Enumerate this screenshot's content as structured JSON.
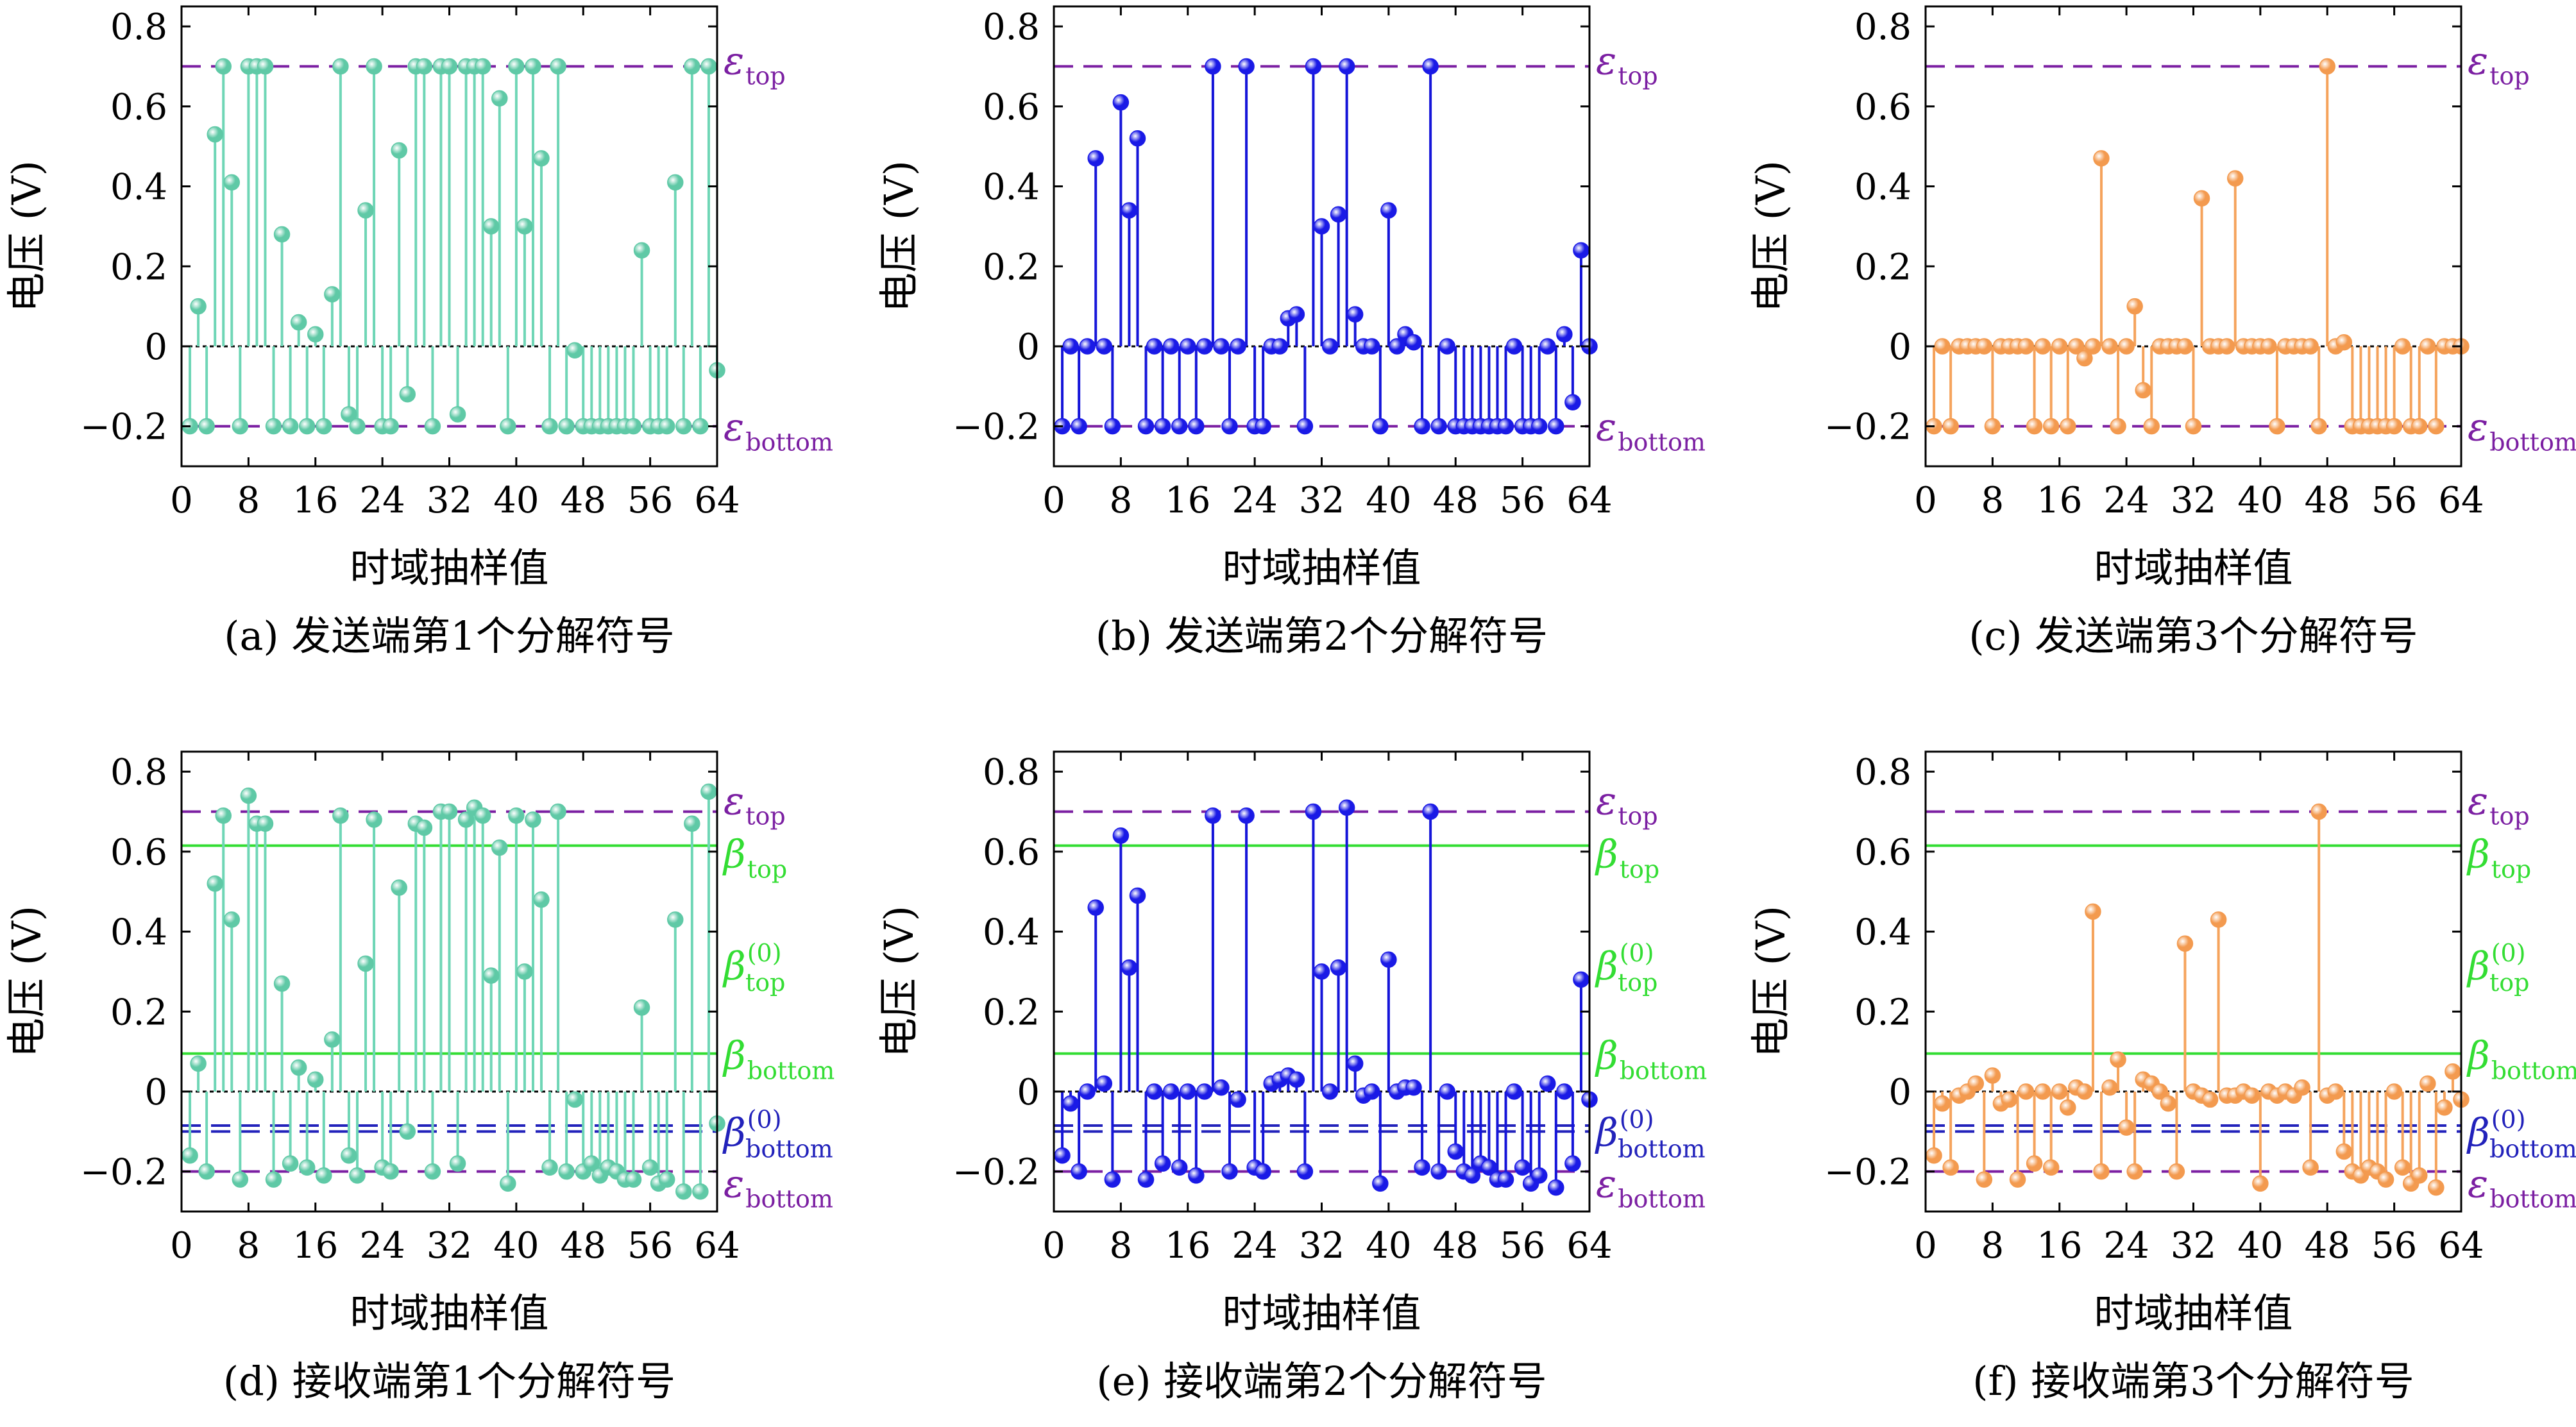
{
  "colors": {
    "teal": "#6fd6b6",
    "teal_marker": "#5fc9a6",
    "blue": "#1515d9",
    "blue_marker": "#1a1ae6",
    "orange": "#f5a35c",
    "orange_marker": "#f39a4f",
    "epsilon_line": "#7b1fa2",
    "beta_line": "#33dd33",
    "beta0_line": "#2222bb",
    "zero_line": "#000000"
  },
  "axes": {
    "ylabel": "电压 (V)",
    "xlabel": "时域抽样值",
    "xticks": [
      0,
      8,
      16,
      24,
      32,
      40,
      48,
      56,
      64
    ],
    "yticks": [
      -0.2,
      0,
      0.2,
      0.4,
      0.6,
      0.8
    ],
    "ytick_labels": [
      "−0.2",
      "0",
      "0.2",
      "0.4",
      "0.6",
      "0.8"
    ],
    "xlim": [
      0,
      64
    ],
    "ylim": [
      -0.3,
      0.85
    ]
  },
  "ref_labels": {
    "epsilon_top": {
      "sym": "ε",
      "sub": "top"
    },
    "epsilon_bottom": {
      "sym": "ε",
      "sub": "bottom"
    },
    "beta_top": {
      "sym": "β",
      "sub": "top"
    },
    "beta_bottom": {
      "sym": "β",
      "sub": "bottom"
    },
    "beta0_top": {
      "sym": "β",
      "sup": "(0)",
      "sub": "top"
    },
    "beta0_bottom": {
      "sym": "β",
      "sup": "(0)",
      "sub": "bottom"
    }
  },
  "chart_data": [
    {
      "type": "stem",
      "caption": "(a) 发送端第1个分解符号",
      "color": "teal",
      "ref_lines": {
        "epsilon_top": 0.7,
        "epsilon_bottom": -0.2
      },
      "x": [
        1,
        2,
        3,
        4,
        5,
        6,
        7,
        8,
        9,
        10,
        11,
        12,
        13,
        14,
        15,
        16,
        17,
        18,
        19,
        20,
        21,
        22,
        23,
        24,
        25,
        26,
        27,
        28,
        29,
        30,
        31,
        32,
        33,
        34,
        35,
        36,
        37,
        38,
        39,
        40,
        41,
        42,
        43,
        44,
        45,
        46,
        47,
        48,
        49,
        50,
        51,
        52,
        53,
        54,
        55,
        56,
        57,
        58,
        59,
        60,
        61,
        62,
        63,
        64
      ],
      "y": [
        -0.2,
        0.1,
        -0.2,
        0.53,
        0.7,
        0.41,
        -0.2,
        0.7,
        0.7,
        0.7,
        -0.2,
        0.28,
        -0.2,
        0.06,
        -0.2,
        0.03,
        -0.2,
        0.13,
        0.7,
        -0.17,
        -0.2,
        0.34,
        0.7,
        -0.2,
        -0.2,
        0.49,
        -0.12,
        0.7,
        0.7,
        -0.2,
        0.7,
        0.7,
        -0.17,
        0.7,
        0.7,
        0.7,
        0.3,
        0.62,
        -0.2,
        0.7,
        0.3,
        0.7,
        0.47,
        -0.2,
        0.7,
        -0.2,
        -0.01,
        -0.2,
        -0.2,
        -0.2,
        -0.2,
        -0.2,
        -0.2,
        -0.2,
        0.24,
        -0.2,
        -0.2,
        -0.2,
        0.41,
        -0.2,
        0.7,
        -0.2,
        0.7,
        -0.06
      ]
    },
    {
      "type": "stem",
      "caption": "(b) 发送端第2个分解符号",
      "color": "blue",
      "ref_lines": {
        "epsilon_top": 0.7,
        "epsilon_bottom": -0.2
      },
      "x": [
        1,
        2,
        3,
        4,
        5,
        6,
        7,
        8,
        9,
        10,
        11,
        12,
        13,
        14,
        15,
        16,
        17,
        18,
        19,
        20,
        21,
        22,
        23,
        24,
        25,
        26,
        27,
        28,
        29,
        30,
        31,
        32,
        33,
        34,
        35,
        36,
        37,
        38,
        39,
        40,
        41,
        42,
        43,
        44,
        45,
        46,
        47,
        48,
        49,
        50,
        51,
        52,
        53,
        54,
        55,
        56,
        57,
        58,
        59,
        60,
        61,
        62,
        63,
        64
      ],
      "y": [
        -0.2,
        0,
        -0.2,
        0,
        0.47,
        0,
        -0.2,
        0.61,
        0.34,
        0.52,
        -0.2,
        0,
        -0.2,
        0,
        -0.2,
        0,
        -0.2,
        0,
        0.7,
        0,
        -0.2,
        0,
        0.7,
        -0.2,
        -0.2,
        0,
        0,
        0.07,
        0.08,
        -0.2,
        0.7,
        0.3,
        0,
        0.33,
        0.7,
        0.08,
        0,
        0,
        -0.2,
        0.34,
        0,
        0.03,
        0.01,
        -0.2,
        0.7,
        -0.2,
        0,
        -0.2,
        -0.2,
        -0.2,
        -0.2,
        -0.2,
        -0.2,
        -0.2,
        0,
        -0.2,
        -0.2,
        -0.2,
        0,
        -0.2,
        0.03,
        -0.14,
        0.24,
        0
      ]
    },
    {
      "type": "stem",
      "caption": "(c) 发送端第3个分解符号",
      "color": "orange",
      "ref_lines": {
        "epsilon_top": 0.7,
        "epsilon_bottom": -0.2
      },
      "x": [
        1,
        2,
        3,
        4,
        5,
        6,
        7,
        8,
        9,
        10,
        11,
        12,
        13,
        14,
        15,
        16,
        17,
        18,
        19,
        20,
        21,
        22,
        23,
        24,
        25,
        26,
        27,
        28,
        29,
        30,
        31,
        32,
        33,
        34,
        35,
        36,
        37,
        38,
        39,
        40,
        41,
        42,
        43,
        44,
        45,
        46,
        47,
        48,
        49,
        50,
        51,
        52,
        53,
        54,
        55,
        56,
        57,
        58,
        59,
        60,
        61,
        62,
        63,
        64
      ],
      "y": [
        -0.2,
        0,
        -0.2,
        0,
        0,
        0,
        0,
        -0.2,
        0,
        0,
        0,
        0,
        -0.2,
        0,
        -0.2,
        0,
        -0.2,
        0,
        -0.03,
        0,
        0.47,
        0,
        -0.2,
        0,
        0.1,
        -0.11,
        -0.2,
        0,
        0,
        0,
        0,
        -0.2,
        0.37,
        0,
        0,
        0,
        0.42,
        0,
        0,
        0,
        0,
        -0.2,
        0,
        0,
        0,
        0,
        -0.2,
        0.7,
        0,
        0.01,
        -0.2,
        -0.2,
        -0.2,
        -0.2,
        -0.2,
        -0.2,
        0,
        -0.2,
        -0.2,
        0,
        -0.2,
        0,
        0,
        0
      ]
    },
    {
      "type": "stem",
      "caption": "(d) 接收端第1个分解符号",
      "color": "teal",
      "ref_lines": {
        "epsilon_top": 0.7,
        "beta_top": 0.615,
        "beta_bottom": 0.095,
        "beta0_bottom": -0.1,
        "epsilon_bottom": -0.2
      },
      "extra_dashed": [
        -0.085
      ],
      "beta0_top_label": 0.3,
      "x": [
        1,
        2,
        3,
        4,
        5,
        6,
        7,
        8,
        9,
        10,
        11,
        12,
        13,
        14,
        15,
        16,
        17,
        18,
        19,
        20,
        21,
        22,
        23,
        24,
        25,
        26,
        27,
        28,
        29,
        30,
        31,
        32,
        33,
        34,
        35,
        36,
        37,
        38,
        39,
        40,
        41,
        42,
        43,
        44,
        45,
        46,
        47,
        48,
        49,
        50,
        51,
        52,
        53,
        54,
        55,
        56,
        57,
        58,
        59,
        60,
        61,
        62,
        63,
        64
      ],
      "y": [
        -0.16,
        0.07,
        -0.2,
        0.52,
        0.69,
        0.43,
        -0.22,
        0.74,
        0.67,
        0.67,
        -0.22,
        0.27,
        -0.18,
        0.06,
        -0.19,
        0.03,
        -0.21,
        0.13,
        0.69,
        -0.16,
        -0.21,
        0.32,
        0.68,
        -0.19,
        -0.2,
        0.51,
        -0.1,
        0.67,
        0.66,
        -0.2,
        0.7,
        0.7,
        -0.18,
        0.68,
        0.71,
        0.69,
        0.29,
        0.61,
        -0.23,
        0.69,
        0.3,
        0.68,
        0.48,
        -0.19,
        0.7,
        -0.2,
        -0.02,
        -0.2,
        -0.18,
        -0.21,
        -0.19,
        -0.2,
        -0.22,
        -0.22,
        0.21,
        -0.19,
        -0.23,
        -0.22,
        0.43,
        -0.25,
        0.67,
        -0.25,
        0.75,
        -0.08
      ]
    },
    {
      "type": "stem",
      "caption": "(e) 接收端第2个分解符号",
      "color": "blue",
      "ref_lines": {
        "epsilon_top": 0.7,
        "beta_top": 0.615,
        "beta_bottom": 0.095,
        "beta0_bottom": -0.1,
        "epsilon_bottom": -0.2
      },
      "extra_dashed": [
        -0.085
      ],
      "beta0_top_label": 0.3,
      "x": [
        1,
        2,
        3,
        4,
        5,
        6,
        7,
        8,
        9,
        10,
        11,
        12,
        13,
        14,
        15,
        16,
        17,
        18,
        19,
        20,
        21,
        22,
        23,
        24,
        25,
        26,
        27,
        28,
        29,
        30,
        31,
        32,
        33,
        34,
        35,
        36,
        37,
        38,
        39,
        40,
        41,
        42,
        43,
        44,
        45,
        46,
        47,
        48,
        49,
        50,
        51,
        52,
        53,
        54,
        55,
        56,
        57,
        58,
        59,
        60,
        61,
        62,
        63,
        64
      ],
      "y": [
        -0.16,
        -0.03,
        -0.2,
        0,
        0.46,
        0.02,
        -0.22,
        0.64,
        0.31,
        0.49,
        -0.22,
        0,
        -0.18,
        0,
        -0.19,
        0,
        -0.21,
        0,
        0.69,
        0.01,
        -0.2,
        -0.02,
        0.69,
        -0.19,
        -0.2,
        0.02,
        0.03,
        0.04,
        0.03,
        -0.2,
        0.7,
        0.3,
        0,
        0.31,
        0.71,
        0.07,
        -0.01,
        0,
        -0.23,
        0.33,
        0,
        0.01,
        0.01,
        -0.19,
        0.7,
        -0.2,
        0,
        -0.15,
        -0.2,
        -0.21,
        -0.18,
        -0.19,
        -0.22,
        -0.22,
        0,
        -0.19,
        -0.23,
        -0.21,
        0.02,
        -0.24,
        0,
        -0.18,
        0.28,
        -0.02
      ]
    },
    {
      "type": "stem",
      "caption": "(f) 接收端第3个分解符号",
      "color": "orange",
      "ref_lines": {
        "epsilon_top": 0.7,
        "beta_top": 0.615,
        "beta_bottom": 0.095,
        "beta0_bottom": -0.1,
        "epsilon_bottom": -0.2
      },
      "extra_dashed": [
        -0.085
      ],
      "beta0_top_label": 0.3,
      "x": [
        1,
        2,
        3,
        4,
        5,
        6,
        7,
        8,
        9,
        10,
        11,
        12,
        13,
        14,
        15,
        16,
        17,
        18,
        19,
        20,
        21,
        22,
        23,
        24,
        25,
        26,
        27,
        28,
        29,
        30,
        31,
        32,
        33,
        34,
        35,
        36,
        37,
        38,
        39,
        40,
        41,
        42,
        43,
        44,
        45,
        46,
        47,
        48,
        49,
        50,
        51,
        52,
        53,
        54,
        55,
        56,
        57,
        58,
        59,
        60,
        61,
        62,
        63,
        64
      ],
      "y": [
        -0.16,
        -0.03,
        -0.19,
        -0.01,
        0,
        0.02,
        -0.22,
        0.04,
        -0.03,
        -0.02,
        -0.22,
        0,
        -0.18,
        0,
        -0.19,
        0,
        -0.04,
        0.01,
        0,
        0.45,
        -0.2,
        0.01,
        0.08,
        -0.09,
        -0.2,
        0.03,
        0.02,
        0,
        -0.03,
        -0.2,
        0.37,
        0,
        -0.01,
        -0.02,
        0.43,
        -0.01,
        -0.01,
        0,
        -0.01,
        -0.23,
        0,
        -0.01,
        0,
        -0.01,
        0.01,
        -0.19,
        0.7,
        -0.01,
        0,
        -0.15,
        -0.2,
        -0.21,
        -0.19,
        -0.2,
        -0.22,
        0,
        -0.19,
        -0.23,
        -0.21,
        0.02,
        -0.24,
        -0.04,
        0.05,
        -0.02
      ]
    }
  ]
}
